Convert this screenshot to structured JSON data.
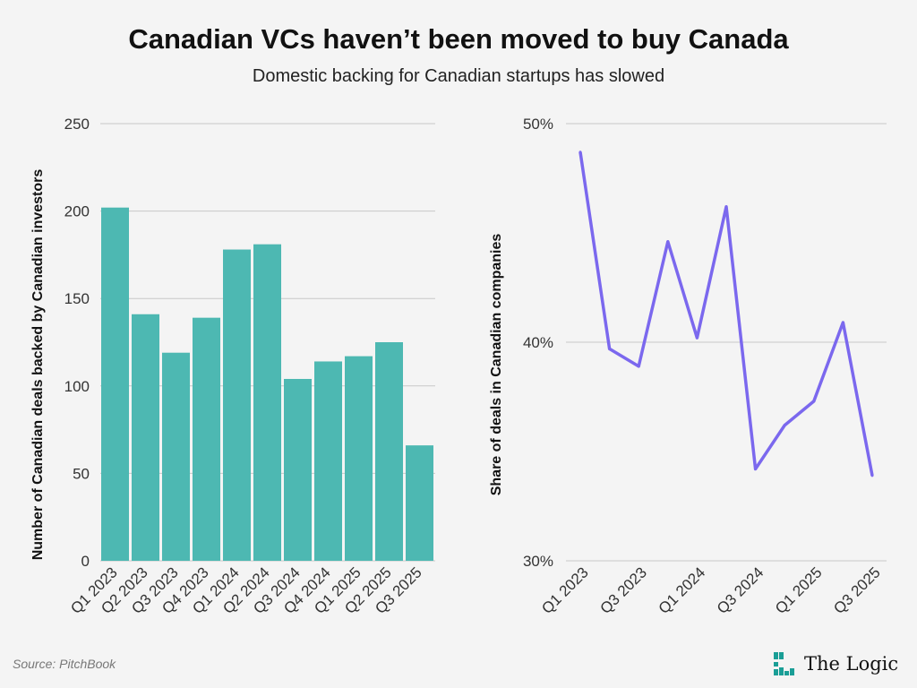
{
  "title": "Canadian VCs haven’t been moved to buy Canada",
  "subtitle": "Domestic backing for Canadian startups has slowed",
  "source": "Source: PitchBook",
  "logo": "The Logic",
  "colors": {
    "bar": "#4db8b2",
    "line": "#7b68ee",
    "logo": "#1a9e96"
  },
  "chart_data": [
    {
      "type": "bar",
      "categories": [
        "Q1 2023",
        "Q2 2023",
        "Q3 2023",
        "Q4 2023",
        "Q1 2024",
        "Q2 2024",
        "Q3 2024",
        "Q4 2024",
        "Q1 2025",
        "Q2 2025",
        "Q3 2025"
      ],
      "values": [
        202,
        141,
        119,
        139,
        178,
        181,
        104,
        114,
        117,
        125,
        66
      ],
      "ylabel": "Number of Canadian deals backed by Canadian investors",
      "ylim": [
        0,
        250
      ],
      "yticks": [
        "0",
        "50",
        "100",
        "150",
        "200",
        "250"
      ],
      "grid": true
    },
    {
      "type": "line",
      "categories": [
        "Q1 2023",
        "Q2 2023",
        "Q3 2023",
        "Q4 2023",
        "Q1 2024",
        "Q2 2024",
        "Q3 2024",
        "Q4 2024",
        "Q1 2025",
        "Q2 2025",
        "Q3 2025"
      ],
      "xticklabels": [
        "Q1 2023",
        "",
        "Q3 2023",
        "",
        "Q1 2024",
        "",
        "Q3 2024",
        "",
        "Q1 2025",
        "",
        "Q3 2025"
      ],
      "values": [
        48.7,
        39.7,
        38.9,
        44.6,
        40.2,
        46.2,
        34.2,
        36.2,
        37.3,
        40.9,
        33.9
      ],
      "ylabel": "Share of deals in Canadian companies",
      "ylim": [
        30,
        50
      ],
      "yticks": [
        "30%",
        "40%",
        "50%"
      ],
      "grid": true
    }
  ]
}
